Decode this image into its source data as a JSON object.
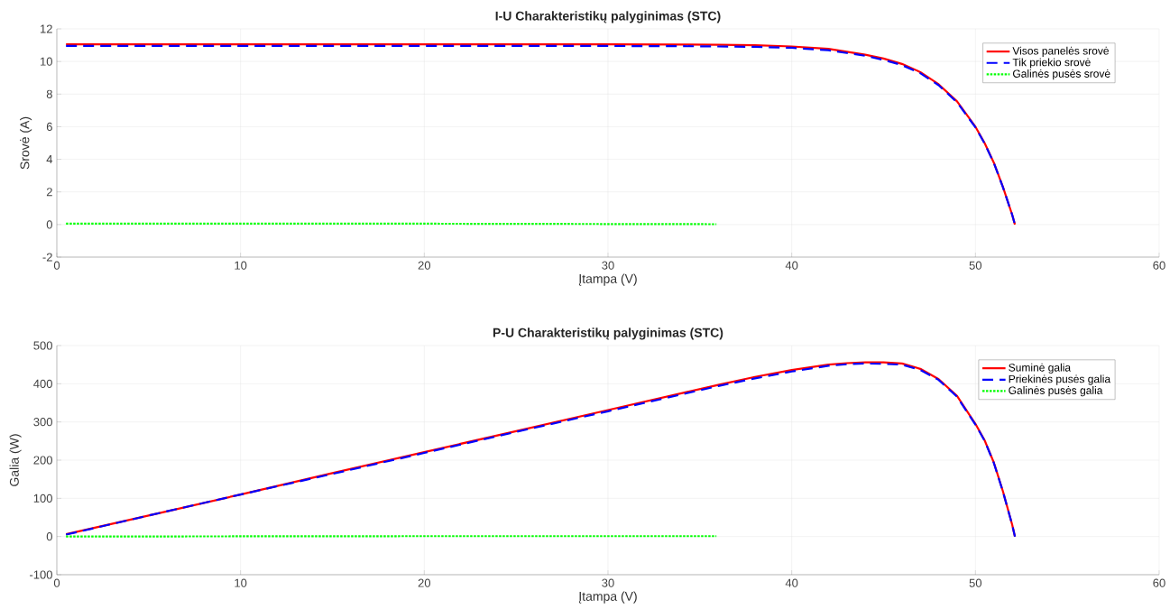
{
  "chart_data": [
    {
      "type": "line",
      "title": "I-U Charakteristikų palyginimas (STC)",
      "xlabel": "Įtampa (V)",
      "ylabel": "Srovė (A)",
      "xlim": [
        0,
        60
      ],
      "ylim": [
        -2,
        12
      ],
      "xticks": [
        0,
        10,
        20,
        30,
        40,
        50,
        60
      ],
      "yticks": [
        -2,
        0,
        2,
        4,
        6,
        8,
        10,
        12
      ],
      "grid": true,
      "legend": "top right",
      "series": [
        {
          "name": "Visos panelės srovė",
          "color": "#ff0000",
          "line_style": "solid",
          "x": [
            0.5,
            5,
            10,
            15,
            20,
            25,
            30,
            34,
            36,
            38,
            40,
            42,
            43,
            44,
            45,
            46,
            47,
            48,
            49,
            50,
            50.5,
            51,
            51.5,
            52,
            52.15
          ],
          "values": [
            11.05,
            11.05,
            11.05,
            11.05,
            11.05,
            11.05,
            11.05,
            11.04,
            11.02,
            11.0,
            10.92,
            10.78,
            10.6,
            10.42,
            10.18,
            9.85,
            9.35,
            8.6,
            7.55,
            6.0,
            5.0,
            3.8,
            2.3,
            0.6,
            0
          ]
        },
        {
          "name": "Tik priekio srovė",
          "color": "#0000ff",
          "line_style": "dashed",
          "x": [
            0.5,
            5,
            10,
            15,
            20,
            25,
            30,
            34,
            36,
            38,
            40,
            42,
            43,
            44,
            45,
            46,
            47,
            48,
            49,
            50,
            50.5,
            51,
            51.5,
            52,
            52.15
          ],
          "values": [
            10.95,
            10.95,
            10.95,
            10.95,
            10.95,
            10.95,
            10.95,
            10.94,
            10.92,
            10.9,
            10.84,
            10.69,
            10.52,
            10.35,
            10.1,
            9.78,
            9.28,
            8.54,
            7.5,
            5.96,
            4.97,
            3.78,
            2.28,
            0.6,
            0
          ]
        },
        {
          "name": "Galinės pusės srovė",
          "color": "#00ff00",
          "line_style": "dotted",
          "x": [
            0.5,
            20,
            35.9
          ],
          "values": [
            0.05,
            0.05,
            0.02
          ]
        }
      ]
    },
    {
      "type": "line",
      "title": "P-U Charakteristikų palyginimas (STC)",
      "xlabel": "Įtampa (V)",
      "ylabel": "Galia (W)",
      "xlim": [
        0,
        60
      ],
      "ylim": [
        -100,
        500
      ],
      "xticks": [
        0,
        10,
        20,
        30,
        40,
        50,
        60
      ],
      "yticks": [
        -100,
        0,
        100,
        200,
        300,
        400,
        500
      ],
      "grid": true,
      "legend": "top right",
      "series": [
        {
          "name": "Suminė galia",
          "color": "#ff0000",
          "line_style": "solid",
          "x": [
            0.5,
            5,
            10,
            15,
            20,
            25,
            30,
            34,
            36,
            38,
            40,
            42,
            43,
            44,
            45,
            46,
            47,
            48,
            49,
            50,
            50.5,
            51,
            51.5,
            52,
            52.15
          ],
          "values": [
            6,
            55,
            110,
            166,
            221,
            276,
            331,
            375,
            397,
            418,
            436,
            450,
            454,
            456,
            456,
            453,
            439,
            412,
            368,
            295,
            252,
            194,
            118,
            31,
            0
          ]
        },
        {
          "name": "Priekinės pusės galia",
          "color": "#0000ff",
          "line_style": "dashed",
          "x": [
            0.5,
            5,
            10,
            15,
            20,
            25,
            30,
            34,
            36,
            38,
            40,
            42,
            43,
            44,
            45,
            46,
            47,
            48,
            49,
            50,
            50.5,
            51,
            51.5,
            52,
            52.15
          ],
          "values": [
            5,
            55,
            110,
            164,
            219,
            274,
            328,
            372,
            394,
            414,
            432,
            447,
            451,
            453,
            452,
            450,
            436,
            410,
            366,
            293,
            251,
            193,
            117,
            31,
            0
          ]
        },
        {
          "name": "Galinės pusės galia",
          "color": "#00ff00",
          "line_style": "dotted",
          "x": [
            0.5,
            20,
            35.9
          ],
          "values": [
            0,
            1,
            1
          ]
        }
      ]
    }
  ]
}
